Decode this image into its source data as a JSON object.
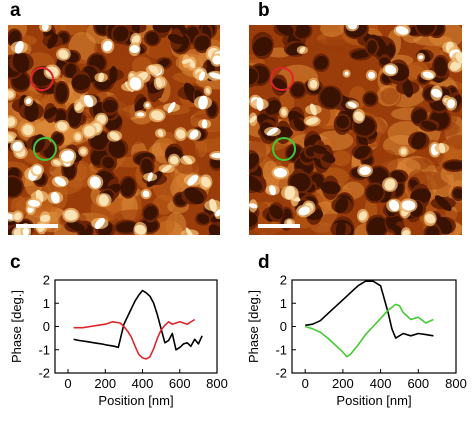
{
  "panels": {
    "a": {
      "letter": "a",
      "marker_colors": [
        "#e0242a",
        "#3ec83a"
      ]
    },
    "b": {
      "letter": "b",
      "marker_colors": [
        "#e0242a",
        "#3ec83a"
      ]
    },
    "c": {
      "letter": "c"
    },
    "d": {
      "letter": "d"
    }
  },
  "afm_palette": [
    "#3a1202",
    "#6b2405",
    "#9a3d0a",
    "#c0601a",
    "#dc8a38",
    "#eeb46a",
    "#fbe2b4",
    "#ffffff"
  ],
  "chart_data": [
    {
      "type": "line",
      "panel": "c",
      "title": "",
      "xlabel": "Position [nm]",
      "ylabel": "Phase [deg.]",
      "xlim": [
        -70,
        800
      ],
      "ylim": [
        -2,
        2
      ],
      "xticks": [
        0,
        200,
        400,
        600,
        800
      ],
      "yticks": [
        2,
        1,
        0,
        -1,
        -2
      ],
      "grid": false,
      "series": [
        {
          "color": "#000000",
          "x": [
            30,
            60,
            100,
            140,
            180,
            210,
            250,
            270,
            300,
            330,
            360,
            380,
            400,
            420,
            440,
            460,
            480,
            500,
            520,
            540,
            560,
            580,
            600,
            620,
            640,
            660,
            680,
            700,
            720
          ],
          "y": [
            -0.55,
            -0.6,
            -0.65,
            -0.7,
            -0.75,
            -0.8,
            -0.85,
            -0.9,
            0.1,
            0.6,
            1.1,
            1.35,
            1.55,
            1.45,
            1.3,
            1.0,
            0.5,
            -0.1,
            -0.7,
            -0.6,
            -0.3,
            -1.0,
            -0.9,
            -0.75,
            -0.7,
            -0.85,
            -0.55,
            -0.75,
            -0.4
          ]
        },
        {
          "color": "#e0242a",
          "x": [
            30,
            80,
            120,
            160,
            200,
            240,
            280,
            300,
            320,
            340,
            360,
            380,
            400,
            420,
            440,
            460,
            480,
            500,
            520,
            540,
            560,
            600,
            640,
            680
          ],
          "y": [
            -0.05,
            -0.05,
            0.0,
            0.05,
            0.1,
            0.2,
            0.15,
            0.0,
            -0.2,
            -0.45,
            -0.85,
            -1.2,
            -1.35,
            -1.4,
            -1.3,
            -0.95,
            -0.5,
            -0.15,
            0.05,
            0.2,
            0.1,
            0.2,
            0.1,
            0.3
          ]
        }
      ]
    },
    {
      "type": "line",
      "panel": "d",
      "title": "",
      "xlabel": "Position [nm]",
      "ylabel": "Phase [deg.]",
      "xlim": [
        -70,
        800
      ],
      "ylim": [
        -2,
        2
      ],
      "xticks": [
        0,
        200,
        400,
        600,
        800
      ],
      "yticks": [
        2,
        1,
        0,
        -1,
        -2
      ],
      "grid": false,
      "series": [
        {
          "color": "#000000",
          "x": [
            0,
            40,
            80,
            120,
            160,
            200,
            240,
            280,
            320,
            360,
            400,
            440,
            460,
            480,
            520,
            560,
            600,
            640,
            680
          ],
          "y": [
            0.05,
            0.1,
            0.25,
            0.55,
            0.85,
            1.15,
            1.45,
            1.75,
            1.95,
            1.95,
            1.75,
            0.6,
            -0.1,
            -0.5,
            -0.3,
            -0.4,
            -0.3,
            -0.35,
            -0.4
          ]
        },
        {
          "color": "#44cc33",
          "x": [
            0,
            40,
            80,
            120,
            160,
            200,
            220,
            240,
            280,
            320,
            360,
            400,
            440,
            480,
            500,
            520,
            560,
            600,
            640,
            680
          ],
          "y": [
            0.0,
            -0.1,
            -0.25,
            -0.5,
            -0.8,
            -1.1,
            -1.3,
            -1.2,
            -0.8,
            -0.35,
            0.0,
            0.35,
            0.7,
            0.95,
            0.9,
            0.6,
            0.3,
            0.4,
            0.15,
            0.3
          ]
        }
      ]
    }
  ]
}
